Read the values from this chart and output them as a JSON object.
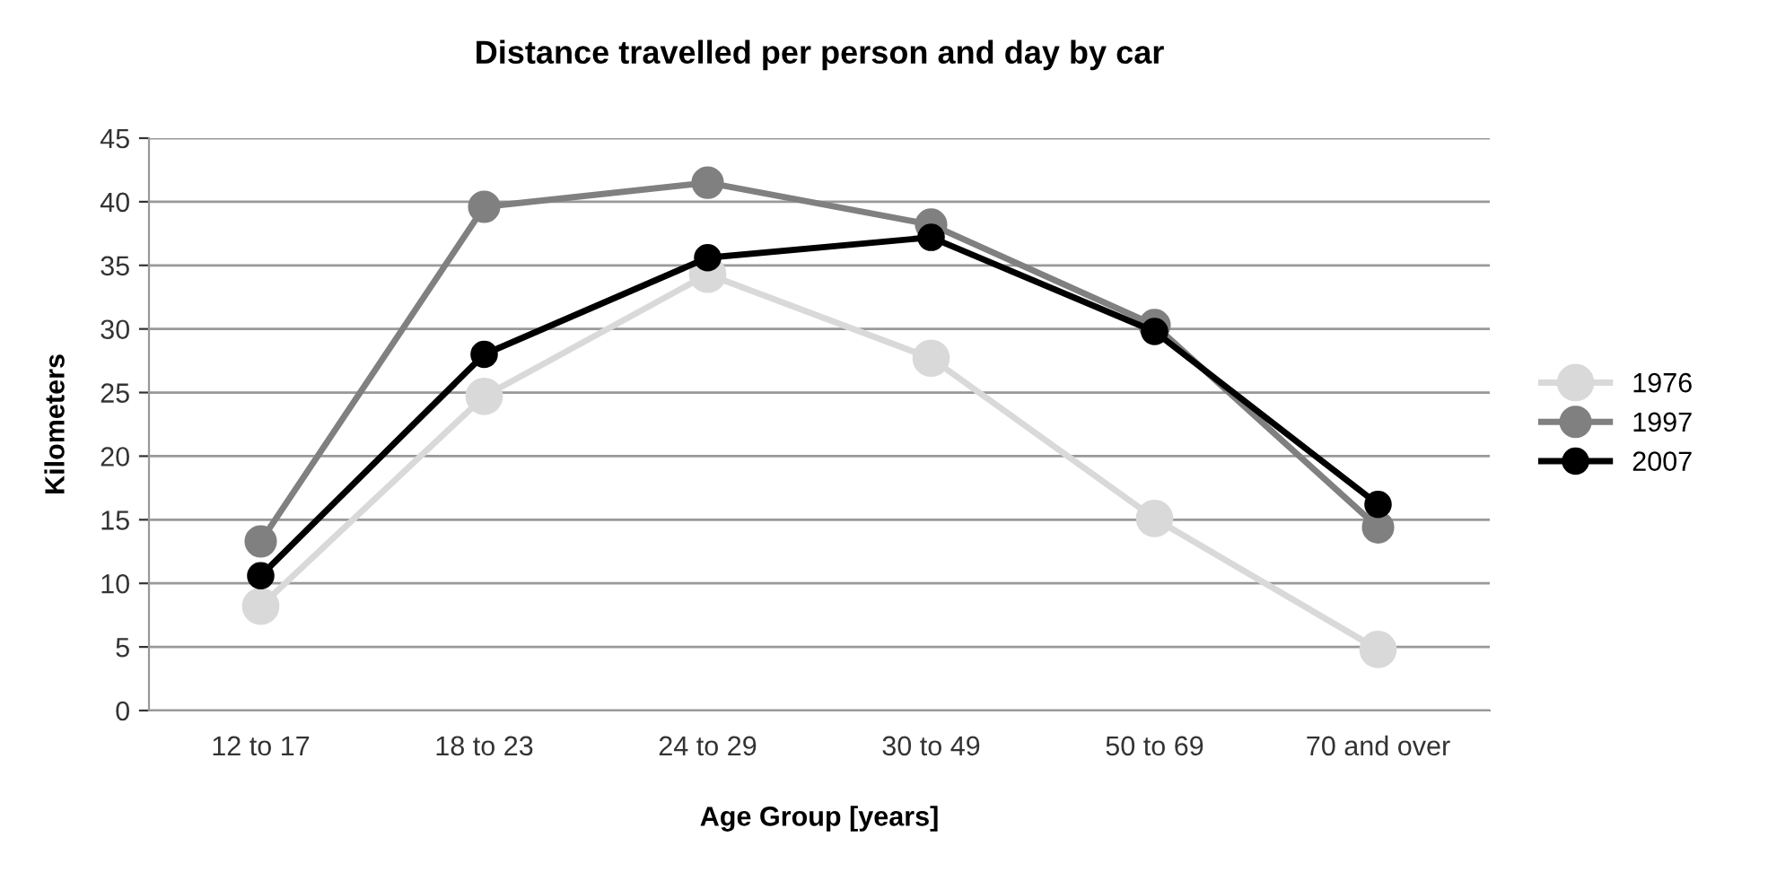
{
  "chart_data": {
    "type": "line",
    "title": "Distance travelled per person and day by car",
    "xlabel": "Age Group [years]",
    "ylabel": "Kilometers",
    "categories": [
      "12 to 17",
      "18 to 23",
      "24 to 29",
      "30 to 49",
      "50 to 69",
      "70 and over"
    ],
    "series": [
      {
        "name": "1976",
        "color": "#d9d9d9",
        "values": [
          8.2,
          24.7,
          34.3,
          27.7,
          15.1,
          4.8
        ]
      },
      {
        "name": "1997",
        "color": "#808080",
        "values": [
          13.3,
          39.6,
          41.5,
          38.2,
          30.3,
          14.4
        ]
      },
      {
        "name": "2007",
        "color": "#000000",
        "values": [
          10.6,
          28.0,
          35.6,
          37.2,
          29.8,
          16.2
        ]
      }
    ],
    "ylim": [
      0,
      45
    ],
    "yticks": [
      0,
      5,
      10,
      15,
      20,
      25,
      30,
      35,
      40,
      45
    ],
    "grid": "y",
    "legend": "right",
    "marker": "circle",
    "line_style": "solid"
  }
}
